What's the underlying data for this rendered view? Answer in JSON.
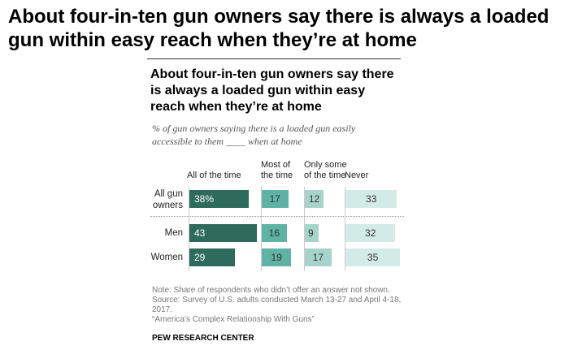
{
  "headline": "About four-in-ten gun owners say there is always a loaded gun within easy reach when they’re at home",
  "chart_data": {
    "type": "bar",
    "title": "About four-in-ten gun owners say there is always a loaded gun within easy reach when they’re at home",
    "subtitle": "% of gun owners saying there is a loaded gun easily accessible to them ____ when at home",
    "categories": [
      "All gun owners",
      "Men",
      "Women"
    ],
    "series": [
      {
        "name": "All of the time",
        "values": [
          38,
          43,
          29
        ],
        "color": "#2e6b5c",
        "labels": [
          "38%",
          "43",
          "29"
        ]
      },
      {
        "name": "Most of the time",
        "values": [
          17,
          16,
          19
        ],
        "color": "#5fb3a5",
        "labels": [
          "17",
          "16",
          "19"
        ]
      },
      {
        "name": "Only some of the time",
        "values": [
          12,
          9,
          17
        ],
        "color": "#a6d4cb",
        "labels": [
          "12",
          "9",
          "17"
        ]
      },
      {
        "name": "Never",
        "values": [
          33,
          32,
          35
        ],
        "color": "#d3ebe6",
        "labels": [
          "33",
          "32",
          "35"
        ]
      }
    ],
    "layout": "stacked-columns",
    "note": "Note: Share of respondents who didn’t offer an answer not shown.",
    "source": "Source: Survey of U.S. adults conducted March 13-27 and April 4-18, 2017.",
    "report": "“America’s Complex Relationship With Guns”",
    "credit": "PEW RESEARCH CENTER"
  }
}
